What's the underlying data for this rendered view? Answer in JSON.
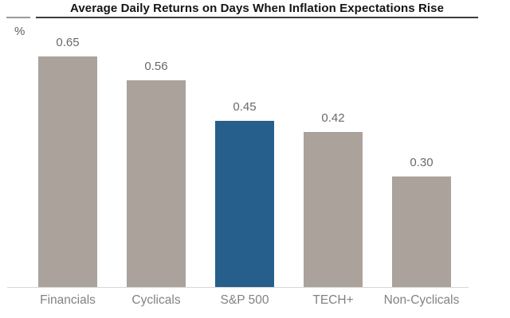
{
  "chart_data": {
    "type": "bar",
    "title": "Average Daily Returns on Days When Inflation Expectations Rise",
    "xlabel": "",
    "ylabel": "%",
    "categories": [
      "Financials",
      "Cyclicals",
      "S&P 500",
      "TECH+",
      "Non-Cyclicals"
    ],
    "values": [
      0.65,
      0.56,
      0.45,
      0.42,
      0.3
    ],
    "value_labels": [
      "0.65",
      "0.56",
      "0.45",
      "0.42",
      "0.30"
    ],
    "ylim": [
      0,
      0.68
    ],
    "grid": false,
    "legend_position": "none",
    "highlight_category": "S&P 500",
    "colors": {
      "bar_default": "#aaa29b",
      "bar_highlight": "#265f8c",
      "value_label": "#696969",
      "category_label": "#828282",
      "axis_line": "#d6d6d6",
      "title_text": "#151515",
      "title_rule": "#3c3c3c"
    }
  }
}
